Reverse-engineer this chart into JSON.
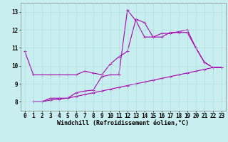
{
  "xlabel": "Windchill (Refroidissement éolien,°C)",
  "bg_color": "#c8eef0",
  "grid_color": "#aadddd",
  "line_color": "#aa00aa",
  "xlim": [
    -0.5,
    23.5
  ],
  "ylim": [
    7.5,
    13.5
  ],
  "xticks": [
    0,
    1,
    2,
    3,
    4,
    5,
    6,
    7,
    8,
    9,
    10,
    11,
    12,
    13,
    14,
    15,
    16,
    17,
    18,
    19,
    20,
    21,
    22,
    23
  ],
  "yticks": [
    8,
    9,
    10,
    11,
    12,
    13
  ],
  "line1_x": [
    0,
    1,
    2,
    3,
    4,
    5,
    6,
    7,
    8,
    9,
    10,
    11,
    12,
    13,
    14,
    15,
    16,
    17,
    18,
    19,
    20,
    21,
    22,
    23
  ],
  "line1_y": [
    10.8,
    9.5,
    9.5,
    9.5,
    9.5,
    9.5,
    9.5,
    9.7,
    9.6,
    9.5,
    10.1,
    10.5,
    10.8,
    12.6,
    12.4,
    11.6,
    11.8,
    11.8,
    11.9,
    12.0,
    11.0,
    10.2,
    9.9,
    9.9
  ],
  "line2_x": [
    1,
    2,
    3,
    4,
    5,
    6,
    7,
    8,
    9,
    10,
    11,
    12,
    13,
    14,
    15,
    16,
    17,
    18,
    19,
    20,
    21,
    22,
    23
  ],
  "line2_y": [
    8.0,
    8.0,
    8.2,
    8.2,
    8.2,
    8.5,
    8.6,
    8.65,
    9.4,
    9.5,
    9.5,
    13.1,
    12.5,
    11.6,
    11.6,
    11.6,
    11.85,
    11.85,
    11.85,
    11.0,
    10.2,
    9.9,
    9.9
  ],
  "line3_x": [
    1,
    2,
    3,
    4,
    5,
    6,
    7,
    8,
    9,
    10,
    11,
    12,
    13,
    14,
    15,
    16,
    17,
    18,
    19,
    20,
    21,
    22,
    23
  ],
  "line3_y": [
    8.0,
    8.0,
    8.1,
    8.15,
    8.2,
    8.3,
    8.4,
    8.5,
    8.6,
    8.7,
    8.8,
    8.9,
    9.0,
    9.1,
    9.2,
    9.3,
    9.4,
    9.5,
    9.6,
    9.7,
    9.8,
    9.9,
    9.9
  ],
  "xlabel_fontsize": 6,
  "tick_fontsize": 5.5,
  "lw": 0.8,
  "ms": 2.5
}
